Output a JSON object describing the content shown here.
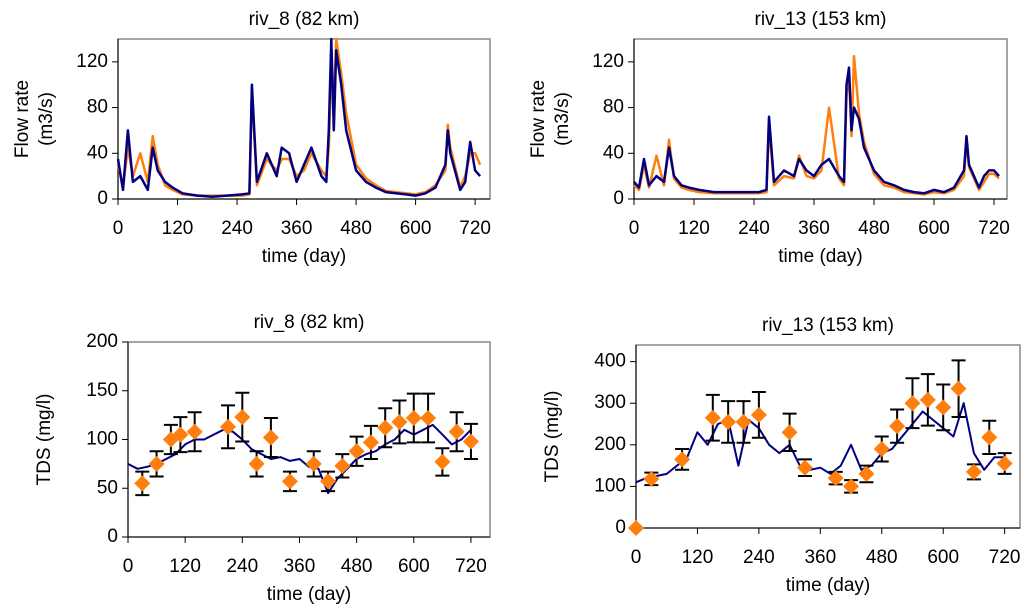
{
  "chart_data": [
    {
      "type": "line",
      "title": "riv_8 (82 km)",
      "xlabel": "time (day)",
      "ylabel": [
        "Flow rate",
        "(m3/s)"
      ],
      "xlim": [
        0,
        750
      ],
      "xticks": [
        0,
        120,
        240,
        360,
        480,
        600,
        720
      ],
      "ylim": [
        0,
        140
      ],
      "yticks": [
        0,
        40,
        80,
        120
      ],
      "x": [
        0,
        10,
        20,
        30,
        45,
        60,
        70,
        80,
        95,
        110,
        130,
        160,
        190,
        220,
        250,
        265,
        270,
        280,
        300,
        320,
        330,
        345,
        360,
        375,
        390,
        410,
        420,
        425,
        430,
        435,
        440,
        450,
        460,
        480,
        500,
        520,
        540,
        560,
        580,
        600,
        620,
        640,
        660,
        665,
        670,
        690,
        700,
        710,
        720,
        730
      ],
      "series": [
        {
          "color": "#ff7f0e",
          "values": [
            30,
            10,
            45,
            20,
            40,
            15,
            55,
            30,
            12,
            8,
            4,
            3,
            3,
            3,
            3,
            4,
            95,
            12,
            35,
            25,
            35,
            35,
            20,
            25,
            40,
            25,
            20,
            45,
            120,
            80,
            140,
            110,
            75,
            30,
            18,
            12,
            7,
            6,
            5,
            4,
            6,
            12,
            25,
            65,
            45,
            10,
            20,
            40,
            40,
            30
          ]
        },
        {
          "color": "#000080",
          "values": [
            35,
            8,
            60,
            15,
            20,
            8,
            45,
            25,
            15,
            10,
            5,
            3,
            2,
            3,
            4,
            5,
            100,
            15,
            40,
            20,
            45,
            40,
            15,
            30,
            45,
            20,
            15,
            60,
            140,
            60,
            130,
            100,
            60,
            25,
            15,
            10,
            6,
            5,
            4,
            3,
            5,
            10,
            30,
            60,
            40,
            8,
            15,
            50,
            25,
            20
          ]
        }
      ]
    },
    {
      "type": "line",
      "title": "riv_13 (153 km)",
      "xlabel": "time (day)",
      "ylabel": [
        "Flow rate",
        "(m3/s)"
      ],
      "xlim": [
        0,
        746
      ],
      "xticks": [
        0,
        120,
        240,
        360,
        480,
        600,
        720
      ],
      "ylim": [
        0,
        140
      ],
      "yticks": [
        0,
        40,
        80,
        120
      ],
      "x": [
        0,
        10,
        20,
        30,
        45,
        60,
        70,
        80,
        95,
        110,
        130,
        160,
        190,
        220,
        250,
        265,
        270,
        280,
        300,
        320,
        330,
        345,
        360,
        375,
        390,
        410,
        420,
        425,
        430,
        435,
        440,
        450,
        460,
        480,
        500,
        520,
        540,
        560,
        580,
        600,
        620,
        640,
        660,
        665,
        670,
        690,
        700,
        710,
        720,
        730
      ],
      "series": [
        {
          "color": "#ff7f0e",
          "values": [
            12,
            8,
            30,
            10,
            38,
            12,
            52,
            18,
            10,
            8,
            6,
            5,
            5,
            5,
            5,
            6,
            65,
            12,
            20,
            18,
            38,
            20,
            18,
            25,
            80,
            18,
            12,
            90,
            110,
            55,
            125,
            75,
            50,
            22,
            12,
            10,
            6,
            5,
            4,
            6,
            5,
            8,
            20,
            50,
            28,
            8,
            15,
            22,
            22,
            18
          ]
        },
        {
          "color": "#000080",
          "values": [
            15,
            10,
            35,
            12,
            20,
            15,
            45,
            20,
            12,
            10,
            8,
            6,
            6,
            6,
            6,
            8,
            72,
            15,
            25,
            20,
            35,
            25,
            20,
            30,
            35,
            20,
            15,
            100,
            115,
            60,
            80,
            70,
            45,
            25,
            15,
            12,
            8,
            6,
            5,
            8,
            6,
            10,
            25,
            55,
            30,
            10,
            20,
            25,
            25,
            20
          ]
        }
      ]
    },
    {
      "type": "line-scatter",
      "title": "riv_8 (82 km)",
      "xlabel": "time (day)",
      "ylabel": [
        "TDS (mg/l)"
      ],
      "xlim": [
        0,
        760
      ],
      "xticks": [
        0,
        120,
        240,
        360,
        480,
        600,
        720
      ],
      "ylim": [
        0,
        200
      ],
      "yticks": [
        0,
        50,
        100,
        150,
        200
      ],
      "series": [
        {
          "type": "line",
          "color": "#000080",
          "x": [
            0,
            20,
            40,
            60,
            80,
            100,
            120,
            140,
            160,
            180,
            200,
            220,
            240,
            260,
            280,
            300,
            320,
            340,
            360,
            380,
            400,
            420,
            440,
            460,
            480,
            500,
            520,
            540,
            560,
            580,
            600,
            620,
            640,
            660,
            680,
            700,
            720
          ],
          "values": [
            75,
            70,
            72,
            75,
            80,
            85,
            95,
            100,
            100,
            105,
            110,
            108,
            100,
            90,
            85,
            80,
            82,
            78,
            80,
            72,
            70,
            45,
            60,
            70,
            80,
            85,
            88,
            95,
            100,
            110,
            105,
            110,
            115,
            105,
            95,
            100,
            110
          ]
        },
        {
          "type": "scatter",
          "color": "#ff7f0e",
          "x": [
            30,
            60,
            90,
            110,
            140,
            210,
            240,
            270,
            300,
            340,
            390,
            420,
            450,
            480,
            510,
            540,
            570,
            600,
            630,
            660,
            690,
            720
          ],
          "values": [
            55,
            75,
            100,
            105,
            108,
            113,
            123,
            75,
            102,
            57,
            75,
            57,
            73,
            88,
            97,
            112,
            118,
            122,
            122,
            77,
            108,
            98
          ],
          "errors": [
            12,
            13,
            15,
            18,
            20,
            22,
            25,
            13,
            20,
            10,
            13,
            10,
            12,
            15,
            17,
            20,
            22,
            25,
            25,
            14,
            20,
            18
          ]
        }
      ]
    },
    {
      "type": "line-scatter",
      "title": "riv_13 (153 km)",
      "xlabel": "time (day)",
      "ylabel": [
        "TDS (mg/l)"
      ],
      "xlim": [
        0,
        750
      ],
      "xticks": [
        0,
        120,
        240,
        360,
        480,
        600,
        720
      ],
      "ylim": [
        0,
        440
      ],
      "yticks": [
        0,
        100,
        200,
        300,
        400
      ],
      "series": [
        {
          "type": "line",
          "color": "#000080",
          "x": [
            0,
            20,
            40,
            60,
            80,
            100,
            120,
            140,
            160,
            180,
            200,
            220,
            240,
            260,
            280,
            300,
            320,
            340,
            360,
            380,
            400,
            420,
            440,
            460,
            480,
            500,
            520,
            540,
            560,
            580,
            600,
            620,
            640,
            660,
            680,
            700,
            720
          ],
          "values": [
            110,
            120,
            125,
            130,
            150,
            170,
            230,
            200,
            250,
            260,
            150,
            260,
            240,
            200,
            180,
            200,
            150,
            140,
            145,
            130,
            150,
            200,
            140,
            150,
            180,
            190,
            220,
            250,
            280,
            260,
            240,
            220,
            300,
            180,
            140,
            170,
            170
          ]
        },
        {
          "type": "scatter",
          "color": "#ff7f0e",
          "x": [
            0,
            30,
            90,
            150,
            180,
            210,
            240,
            300,
            330,
            390,
            420,
            450,
            480,
            510,
            540,
            570,
            600,
            630,
            660,
            690,
            720
          ],
          "values": [
            0,
            118,
            165,
            265,
            255,
            255,
            272,
            230,
            145,
            120,
            100,
            130,
            190,
            245,
            300,
            308,
            290,
            335,
            135,
            218,
            155
          ],
          "errors": [
            0,
            15,
            25,
            55,
            50,
            50,
            55,
            45,
            20,
            15,
            15,
            20,
            30,
            40,
            60,
            62,
            55,
            68,
            18,
            40,
            25
          ]
        }
      ]
    }
  ]
}
